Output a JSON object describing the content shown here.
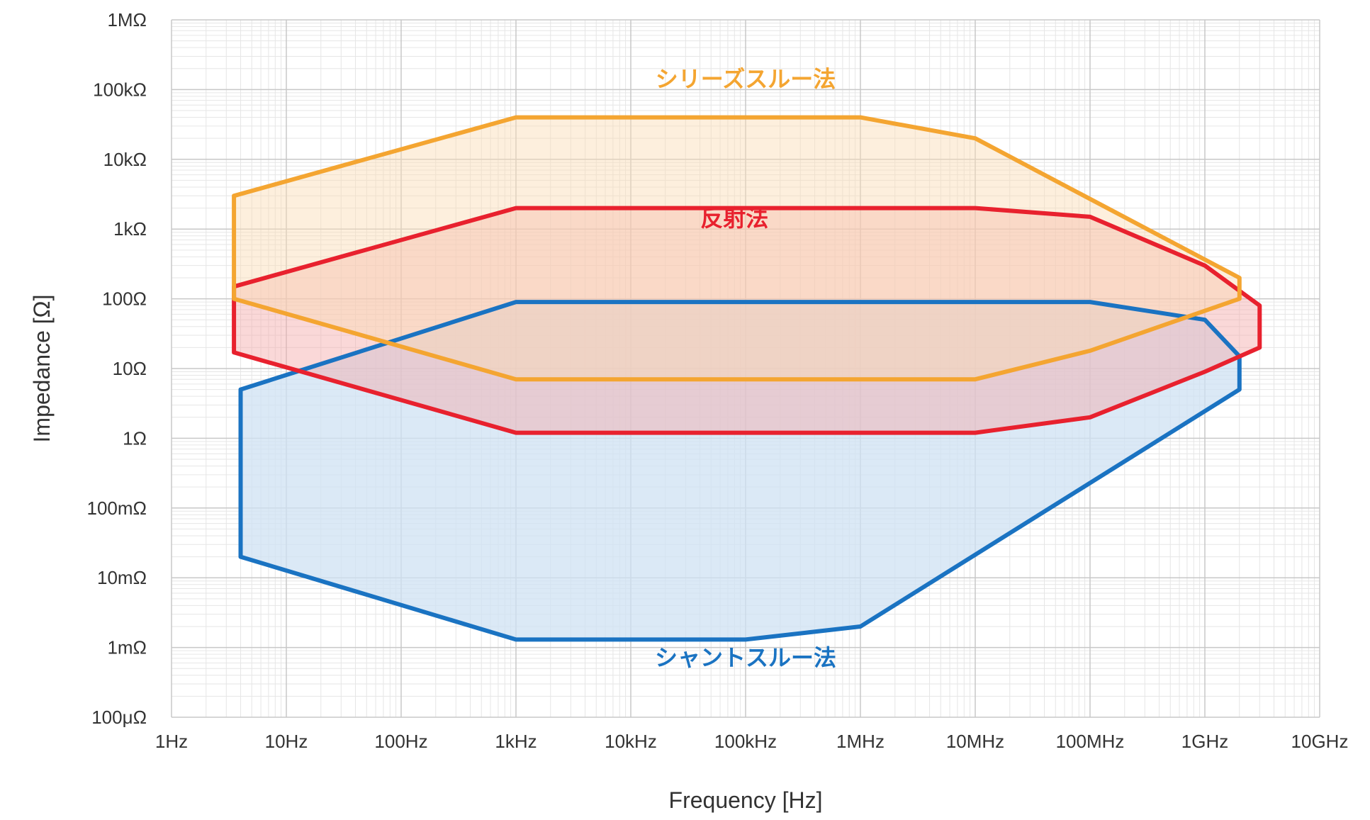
{
  "chart_data": {
    "type": "area",
    "title": "",
    "xlabel": "Frequency [Hz]",
    "ylabel": "Impedance [Ω]",
    "x_scale": "log",
    "y_scale": "log",
    "xlim": [
      1,
      10000000000
    ],
    "ylim": [
      0.0001,
      1000000
    ],
    "grid": true,
    "x_ticks": [
      {
        "value": 1,
        "label": "1Hz"
      },
      {
        "value": 10,
        "label": "10Hz"
      },
      {
        "value": 100,
        "label": "100Hz"
      },
      {
        "value": 1000,
        "label": "1kHz"
      },
      {
        "value": 10000,
        "label": "10kHz"
      },
      {
        "value": 100000,
        "label": "100kHz"
      },
      {
        "value": 1000000,
        "label": "1MHz"
      },
      {
        "value": 10000000,
        "label": "10MHz"
      },
      {
        "value": 100000000,
        "label": "100MHz"
      },
      {
        "value": 1000000000,
        "label": "1GHz"
      },
      {
        "value": 10000000000,
        "label": "10GHz"
      }
    ],
    "y_ticks": [
      {
        "value": 1000000,
        "label": "1MΩ"
      },
      {
        "value": 100000,
        "label": "100kΩ"
      },
      {
        "value": 10000,
        "label": "10kΩ"
      },
      {
        "value": 1000,
        "label": "1kΩ"
      },
      {
        "value": 100,
        "label": "100Ω"
      },
      {
        "value": 10,
        "label": "10Ω"
      },
      {
        "value": 1,
        "label": "1Ω"
      },
      {
        "value": 0.1,
        "label": "100mΩ"
      },
      {
        "value": 0.01,
        "label": "10mΩ"
      },
      {
        "value": 0.001,
        "label": "1mΩ"
      },
      {
        "value": 0.0001,
        "label": "100μΩ"
      }
    ],
    "series": [
      {
        "name": "シャントスルー法",
        "color": "#1a73c2",
        "fill": "#cfe2f3",
        "fill_opacity": 0.75,
        "label_at": [
          100000,
          0.00055
        ],
        "points": [
          [
            4,
            5
          ],
          [
            1000,
            90
          ],
          [
            100000000,
            90
          ],
          [
            1000000000,
            50
          ],
          [
            2000000000,
            15
          ],
          [
            2000000000,
            5
          ],
          [
            1000000,
            0.002
          ],
          [
            100000,
            0.0013
          ],
          [
            1000,
            0.0013
          ],
          [
            4,
            0.02
          ]
        ]
      },
      {
        "name": "反射法",
        "color": "#e8212e",
        "fill": "#f5a9a9",
        "fill_opacity": 0.45,
        "label_at": [
          80000,
          1100
        ],
        "points": [
          [
            3.5,
            150
          ],
          [
            1000,
            2000
          ],
          [
            10000000,
            2000
          ],
          [
            100000000,
            1500
          ],
          [
            1000000000,
            300
          ],
          [
            3000000000,
            80
          ],
          [
            3000000000,
            20
          ],
          [
            1000000000,
            9
          ],
          [
            100000000,
            2
          ],
          [
            10000000,
            1.2
          ],
          [
            1000,
            1.2
          ],
          [
            3.5,
            17
          ]
        ]
      },
      {
        "name": "シリーズスルー法",
        "color": "#f4a531",
        "fill": "#fbdcb4",
        "fill_opacity": 0.45,
        "label_at": [
          100000,
          110000
        ],
        "points": [
          [
            3.5,
            3000
          ],
          [
            1000,
            40000
          ],
          [
            1000000,
            40000
          ],
          [
            10000000,
            20000
          ],
          [
            2000000000,
            200
          ],
          [
            2000000000,
            100
          ],
          [
            100000000,
            18
          ],
          [
            10000000,
            7
          ],
          [
            1000,
            7
          ],
          [
            3.5,
            100
          ]
        ]
      }
    ]
  }
}
